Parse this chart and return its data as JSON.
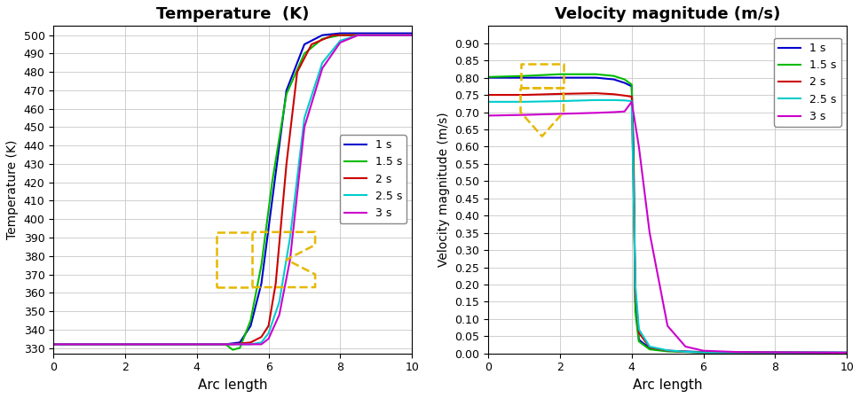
{
  "temp_title": "Temperature  (K)",
  "vel_title": "Velocity magnitude (m/s)",
  "xlabel": "Arc length",
  "temp_ylabel": "Temperature (K)",
  "vel_ylabel": "Velocity magnitude (m/s)",
  "colors": [
    "#0000cc",
    "#00bb00",
    "#cc0000",
    "#00cccc",
    "#cc00cc"
  ],
  "labels": [
    "1 s",
    "1.5 s",
    "2 s",
    "2.5 s",
    "3 s"
  ],
  "temp_xlim": [
    0,
    10
  ],
  "temp_ylim": [
    327,
    505
  ],
  "temp_yticks": [
    330,
    340,
    350,
    360,
    370,
    380,
    390,
    400,
    410,
    420,
    430,
    440,
    450,
    460,
    470,
    480,
    490,
    500
  ],
  "vel_xlim": [
    0,
    10
  ],
  "vel_ylim": [
    0,
    0.95
  ],
  "vel_yticks": [
    0,
    0.05,
    0.1,
    0.15,
    0.2,
    0.25,
    0.3,
    0.35,
    0.4,
    0.45,
    0.5,
    0.55,
    0.6,
    0.65,
    0.7,
    0.75,
    0.8,
    0.85,
    0.9
  ],
  "temp_series": {
    "1s": [
      [
        0,
        4.3,
        4.8,
        5.2,
        5.5,
        5.8,
        6.1,
        6.5,
        7.0,
        7.5,
        8.0,
        10.0
      ],
      [
        332,
        332,
        332,
        333,
        342,
        365,
        410,
        470,
        495,
        500,
        501,
        501
      ]
    ],
    "1.5s": [
      [
        0,
        4.3,
        4.8,
        5.0,
        5.2,
        5.5,
        5.8,
        6.1,
        6.5,
        7.0,
        7.5,
        8.0,
        10.0
      ],
      [
        332,
        332,
        332,
        329,
        330,
        345,
        375,
        420,
        468,
        490,
        498,
        500,
        500
      ]
    ],
    "2s": [
      [
        0,
        4.3,
        5.0,
        5.5,
        5.8,
        6.0,
        6.2,
        6.5,
        6.8,
        7.2,
        7.8,
        8.5,
        10.0
      ],
      [
        332,
        332,
        332,
        333,
        336,
        342,
        365,
        430,
        480,
        495,
        500,
        500,
        500
      ]
    ],
    "2.5s": [
      [
        0,
        4.3,
        5.0,
        5.5,
        5.8,
        6.0,
        6.3,
        6.6,
        7.0,
        7.5,
        8.0,
        8.5,
        10.0
      ],
      [
        332,
        332,
        332,
        332,
        333,
        338,
        355,
        390,
        455,
        485,
        497,
        500,
        500
      ]
    ],
    "3s": [
      [
        0,
        4.3,
        5.0,
        5.5,
        5.8,
        6.0,
        6.3,
        6.6,
        7.0,
        7.5,
        8.0,
        8.5,
        10.0
      ],
      [
        332,
        332,
        332,
        332,
        332,
        335,
        348,
        378,
        450,
        482,
        496,
        500,
        500
      ]
    ]
  },
  "vel_series": {
    "1s": [
      [
        0,
        1.0,
        2.0,
        3.0,
        3.5,
        3.8,
        4.0,
        4.05,
        4.1,
        4.2,
        4.5,
        5.0,
        6.0,
        10.0
      ],
      [
        0.8,
        0.8,
        0.8,
        0.8,
        0.795,
        0.785,
        0.775,
        0.6,
        0.15,
        0.04,
        0.015,
        0.008,
        0.004,
        0.003
      ]
    ],
    "1.5s": [
      [
        0,
        1.0,
        2.0,
        3.0,
        3.5,
        3.8,
        4.0,
        4.05,
        4.1,
        4.2,
        4.5,
        5.0,
        6.0,
        10.0
      ],
      [
        0.802,
        0.805,
        0.81,
        0.81,
        0.805,
        0.795,
        0.78,
        0.55,
        0.12,
        0.035,
        0.012,
        0.006,
        0.003,
        0.002
      ]
    ],
    "2s": [
      [
        0,
        1.0,
        2.0,
        3.0,
        3.5,
        3.8,
        4.0,
        4.05,
        4.1,
        4.2,
        4.5,
        5.0,
        5.5,
        6.0,
        10.0
      ],
      [
        0.75,
        0.75,
        0.753,
        0.755,
        0.752,
        0.748,
        0.745,
        0.5,
        0.18,
        0.06,
        0.018,
        0.008,
        0.005,
        0.003,
        0.002
      ]
    ],
    "2.5s": [
      [
        0,
        1.0,
        2.0,
        3.0,
        3.5,
        3.8,
        4.0,
        4.05,
        4.1,
        4.2,
        4.5,
        5.0,
        5.5,
        6.0,
        10.0
      ],
      [
        0.73,
        0.73,
        0.732,
        0.735,
        0.735,
        0.734,
        0.732,
        0.48,
        0.2,
        0.07,
        0.02,
        0.009,
        0.005,
        0.003,
        0.002
      ]
    ],
    "3s": [
      [
        0,
        1.0,
        2.0,
        3.0,
        3.5,
        3.8,
        4.0,
        4.2,
        4.5,
        5.0,
        5.5,
        6.0,
        7.0,
        10.0
      ],
      [
        0.69,
        0.692,
        0.695,
        0.698,
        0.7,
        0.702,
        0.73,
        0.6,
        0.35,
        0.08,
        0.02,
        0.008,
        0.004,
        0.002
      ]
    ]
  },
  "background_color": "#ffffff",
  "grid_color": "#c8c8c8",
  "annotation_color": "#e6b800"
}
